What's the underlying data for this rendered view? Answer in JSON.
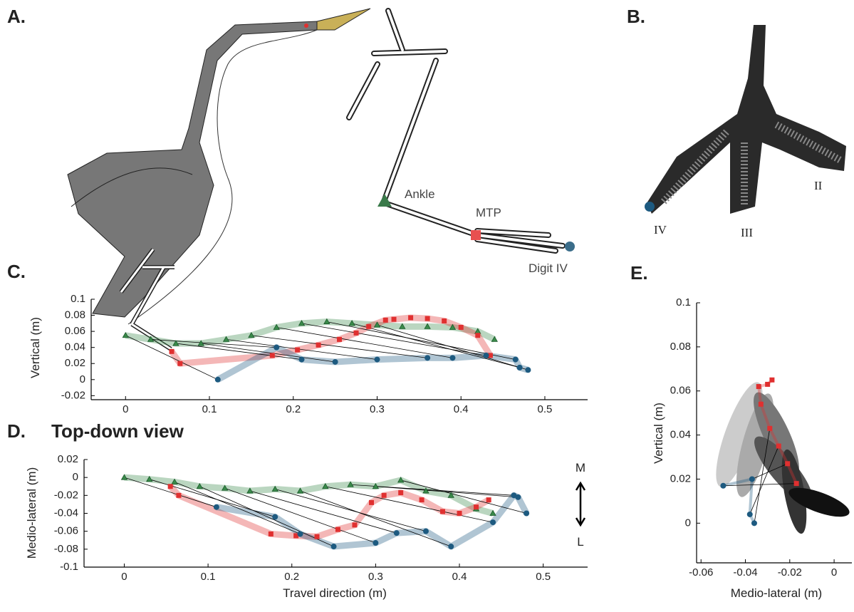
{
  "panels": {
    "a": {
      "label": "A.",
      "ankle": "Ankle",
      "mtp": "MTP",
      "digit": "Digit IV"
    },
    "b": {
      "label": "B.",
      "toe_iv": "IV",
      "toe_iii": "III",
      "toe_ii": "II"
    }
  },
  "chart_data": [
    {
      "type": "scatter",
      "panel": "C.",
      "ylabel": "Vertical (m)",
      "xlim": [
        -0.041,
        0.551
      ],
      "ylim": [
        -0.025,
        0.1
      ],
      "xticks": [
        0,
        0.1,
        0.2,
        0.3,
        0.4,
        0.5
      ],
      "yticks": [
        -0.02,
        0,
        0.02,
        0.04,
        0.06,
        0.08,
        0.1
      ],
      "series": [
        {
          "color": "#3a8a4a",
          "marker": "triangle",
          "x": [
            0,
            0.03,
            0.06,
            0.09,
            0.12,
            0.15,
            0.18,
            0.21,
            0.24,
            0.27,
            0.3,
            0.33,
            0.36,
            0.39,
            0.42,
            0.44
          ],
          "values": [
            0.055,
            0.05,
            0.045,
            0.045,
            0.05,
            0.055,
            0.065,
            0.07,
            0.072,
            0.07,
            0.068,
            0.066,
            0.066,
            0.065,
            0.06,
            0.05
          ]
        },
        {
          "color": "#e03030",
          "marker": "square",
          "x": [
            0.055,
            0.065,
            0.175,
            0.205,
            0.23,
            0.255,
            0.275,
            0.29,
            0.31,
            0.32,
            0.34,
            0.36,
            0.38,
            0.4,
            0.42,
            0.435
          ],
          "values": [
            0.035,
            0.02,
            0.03,
            0.037,
            0.043,
            0.05,
            0.058,
            0.066,
            0.074,
            0.075,
            0.077,
            0.076,
            0.073,
            0.065,
            0.055,
            0.03
          ]
        },
        {
          "color": "#1d5a80",
          "marker": "circle",
          "x": [
            0.11,
            0.18,
            0.21,
            0.25,
            0.3,
            0.36,
            0.39,
            0.43,
            0.465,
            0.47,
            0.48
          ],
          "values": [
            0,
            0.04,
            0.025,
            0.022,
            0.025,
            0.027,
            0.027,
            0.03,
            0.025,
            0.015,
            0.012
          ]
        }
      ]
    },
    {
      "type": "scatter",
      "panel": "D.",
      "title": "Top-down view",
      "xlabel": "Travel direction (m)",
      "ylabel": "Medio-lateral (m)",
      "annotations": [
        "M",
        "L"
      ],
      "xlim": [
        -0.048,
        0.553
      ],
      "ylim": [
        -0.1,
        0.02
      ],
      "xticks": [
        0,
        0.1,
        0.2,
        0.3,
        0.4,
        0.5
      ],
      "yticks": [
        -0.1,
        -0.08,
        -0.06,
        -0.04,
        -0.02,
        0,
        0.02
      ],
      "series": [
        {
          "color": "#3a8a4a",
          "marker": "triangle",
          "x": [
            0,
            0.03,
            0.06,
            0.09,
            0.12,
            0.15,
            0.18,
            0.21,
            0.24,
            0.27,
            0.3,
            0.33,
            0.36,
            0.39,
            0.42,
            0.44
          ],
          "values": [
            0,
            -0.002,
            -0.005,
            -0.01,
            -0.012,
            -0.015,
            -0.013,
            -0.015,
            -0.01,
            -0.008,
            -0.01,
            -0.003,
            -0.015,
            -0.02,
            -0.035,
            -0.04
          ]
        },
        {
          "color": "#e03030",
          "marker": "square",
          "x": [
            0.055,
            0.065,
            0.175,
            0.205,
            0.23,
            0.255,
            0.275,
            0.295,
            0.31,
            0.33,
            0.355,
            0.38,
            0.4,
            0.42,
            0.435
          ],
          "values": [
            -0.01,
            -0.02,
            -0.063,
            -0.065,
            -0.066,
            -0.058,
            -0.053,
            -0.028,
            -0.02,
            -0.017,
            -0.025,
            -0.038,
            -0.04,
            -0.033,
            -0.025
          ]
        },
        {
          "color": "#1d5a80",
          "marker": "circle",
          "x": [
            0.11,
            0.18,
            0.21,
            0.25,
            0.3,
            0.325,
            0.36,
            0.39,
            0.44,
            0.465,
            0.47,
            0.48
          ],
          "values": [
            -0.033,
            -0.044,
            -0.063,
            -0.077,
            -0.073,
            -0.062,
            -0.06,
            -0.077,
            -0.05,
            -0.02,
            -0.022,
            -0.04
          ]
        }
      ]
    },
    {
      "type": "scatter",
      "panel": "E.",
      "xlabel": "Medio-lateral (m)",
      "ylabel": "Vertical (m)",
      "xlim": [
        -0.062,
        0.008
      ],
      "ylim": [
        -0.018,
        0.1
      ],
      "xticks": [
        -0.06,
        -0.04,
        -0.02,
        0
      ],
      "yticks": [
        0,
        0.02,
        0.04,
        0.06,
        0.08,
        0.1
      ],
      "series": [
        {
          "color": "#e03030",
          "marker": "square",
          "x": [
            -0.017,
            -0.021,
            -0.025,
            -0.029,
            -0.033,
            -0.034,
            -0.03,
            -0.028
          ],
          "values": [
            0.018,
            0.027,
            0.035,
            0.043,
            0.054,
            0.062,
            0.063,
            0.065
          ]
        },
        {
          "color": "#1d5a80",
          "marker": "circle",
          "x": [
            -0.05,
            -0.037,
            -0.038,
            -0.036
          ],
          "values": [
            0.017,
            0.02,
            0.004,
            0
          ]
        }
      ]
    }
  ]
}
